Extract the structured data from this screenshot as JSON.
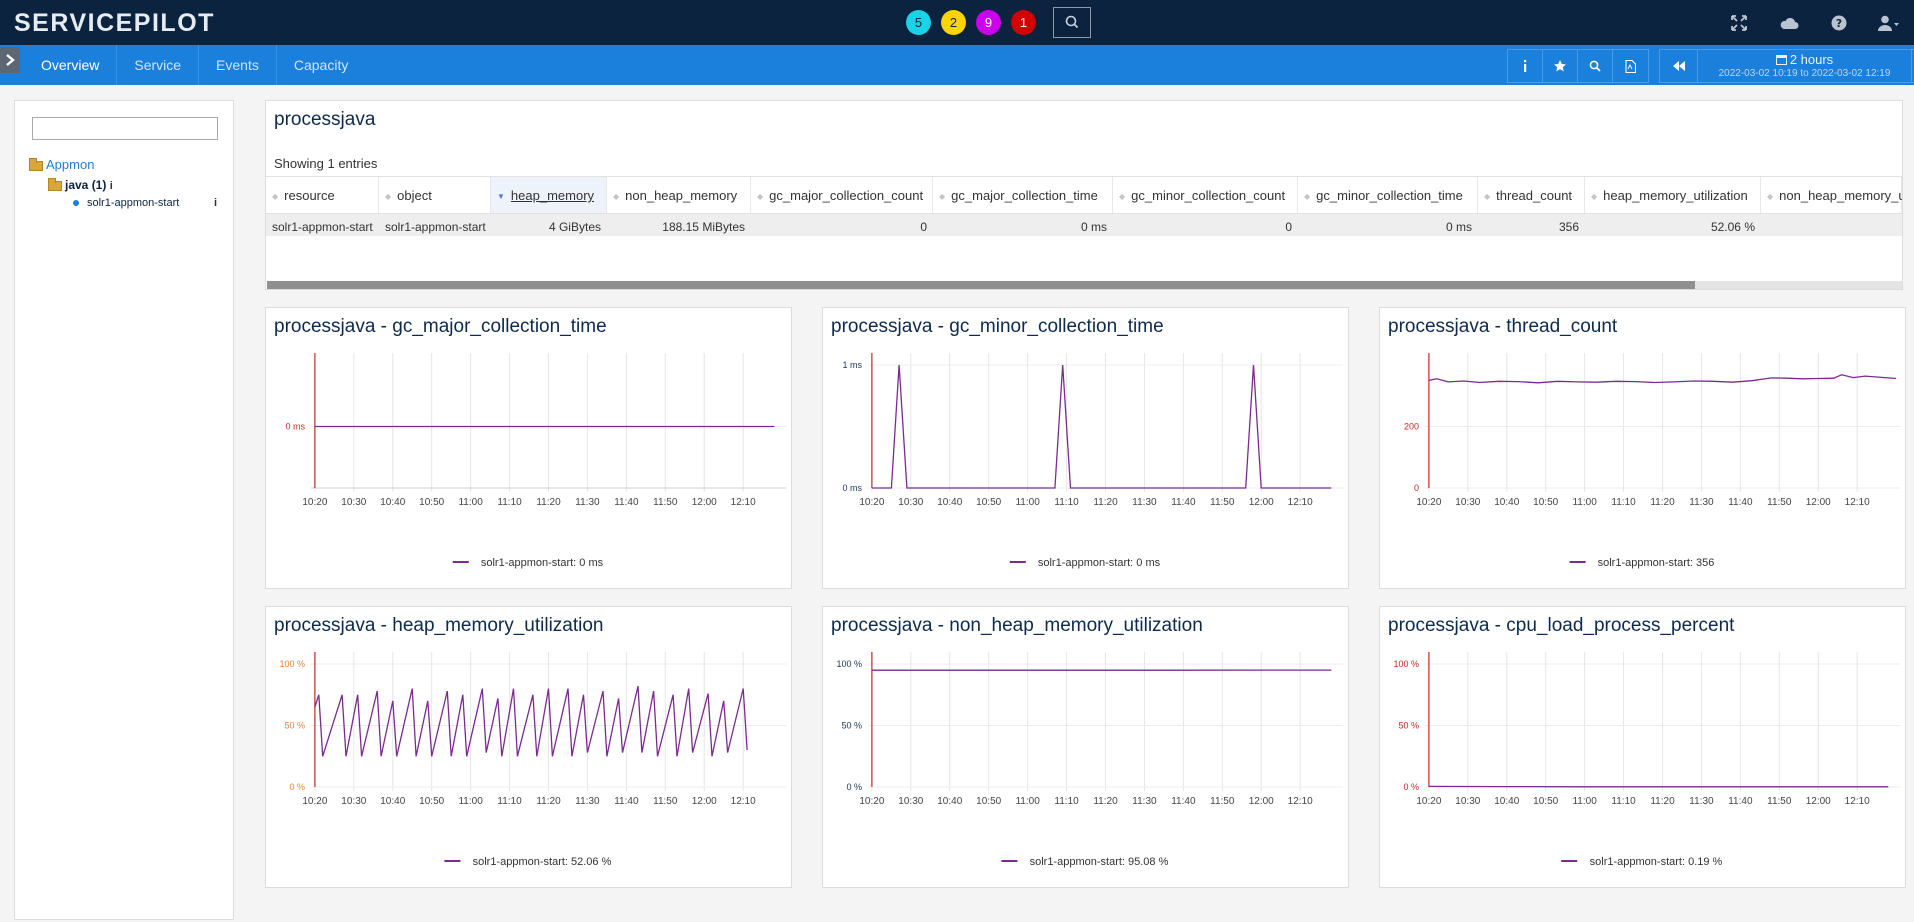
{
  "app": {
    "logo": "SERVICEPILOT",
    "badges": [
      {
        "value": "5",
        "color": "#18d4e6"
      },
      {
        "value": "2",
        "color": "#ffd400"
      },
      {
        "value": "9",
        "color": "#cc00ee"
      },
      {
        "value": "1",
        "color": "#d40000"
      }
    ],
    "top_icons": [
      "expand-icon",
      "cloud-icon",
      "help-icon",
      "user-icon"
    ]
  },
  "nav": {
    "tabs": [
      "Overview",
      "Service",
      "Events",
      "Capacity"
    ],
    "active_tab": "Overview",
    "tool_icons": [
      "info-icon",
      "star-icon",
      "search-icon",
      "pdf-icon"
    ],
    "time": {
      "label": "2 hours",
      "range": "2022-03-02 10:19 to 2022-03-02 12:19"
    }
  },
  "tree": {
    "root": "Appmon",
    "group": "java (1)",
    "leaf": "solr1-appmon-start"
  },
  "table": {
    "title": "processjava",
    "showing": "Showing 1 entries",
    "sorted_column": "heap_memory",
    "columns": [
      "resource",
      "object",
      "heap_memory",
      "non_heap_memory",
      "gc_major_collection_count",
      "gc_major_collection_time",
      "gc_minor_collection_count",
      "gc_minor_collection_time",
      "thread_count",
      "heap_memory_utilization",
      "non_heap_memory_utilization"
    ],
    "rows": [
      [
        "solr1-appmon-start",
        "solr1-appmon-start",
        "4 GiBytes",
        "188.15 MiBytes",
        "0",
        "0 ms",
        "0",
        "0 ms",
        "356",
        "52.06 %",
        ""
      ]
    ]
  },
  "chart_data": [
    {
      "type": "line",
      "title": "processjava - gc_major_collection_time",
      "ylabel": "",
      "xlabel": "",
      "x": [
        "10:20",
        "10:30",
        "10:40",
        "10:50",
        "11:00",
        "11:10",
        "11:20",
        "11:30",
        "11:40",
        "11:50",
        "12:00",
        "12:10"
      ],
      "yticks": [
        "0 ms"
      ],
      "ylim": [
        -1,
        1
      ],
      "series": [
        {
          "name": "solr1-appmon-start: 0 ms",
          "color": "#7b2a8f",
          "points": [
            [
              0,
              0
            ],
            [
              118,
              0
            ]
          ]
        }
      ]
    },
    {
      "type": "line",
      "title": "processjava - gc_minor_collection_time",
      "ylabel": "",
      "xlabel": "",
      "x": [
        "10:20",
        "10:30",
        "10:40",
        "10:50",
        "11:00",
        "11:10",
        "11:20",
        "11:30",
        "11:40",
        "11:50",
        "12:00",
        "12:10"
      ],
      "yticks": [
        "1 ms",
        "0 ms"
      ],
      "ylim": [
        0,
        1
      ],
      "series": [
        {
          "name": "solr1-appmon-start: 0 ms",
          "color": "#7b2a8f",
          "points": [
            [
              0,
              0
            ],
            [
              5,
              0
            ],
            [
              7,
              1
            ],
            [
              9,
              0
            ],
            [
              47,
              0
            ],
            [
              49,
              1
            ],
            [
              51,
              0
            ],
            [
              96,
              0
            ],
            [
              98,
              1
            ],
            [
              100,
              0
            ],
            [
              118,
              0
            ]
          ]
        }
      ]
    },
    {
      "type": "line",
      "title": "processjava - thread_count",
      "ylabel": "",
      "xlabel": "",
      "x": [
        "10:20",
        "10:30",
        "10:40",
        "10:50",
        "11:00",
        "11:10",
        "11:20",
        "11:30",
        "11:40",
        "11:50",
        "12:00",
        "12:10"
      ],
      "yticks": [
        "200",
        "0"
      ],
      "ylim": [
        0,
        400
      ],
      "series": [
        {
          "name": "solr1-appmon-start: 356",
          "color": "#7b2a8f",
          "points": [
            [
              0,
              350
            ],
            [
              2,
              355
            ],
            [
              5,
              345
            ],
            [
              9,
              348
            ],
            [
              13,
              343
            ],
            [
              18,
              347
            ],
            [
              23,
              346
            ],
            [
              28,
              342
            ],
            [
              33,
              347
            ],
            [
              38,
              345
            ],
            [
              43,
              344
            ],
            [
              48,
              347
            ],
            [
              53,
              346
            ],
            [
              58,
              343
            ],
            [
              63,
              345
            ],
            [
              68,
              348
            ],
            [
              73,
              347
            ],
            [
              78,
              344
            ],
            [
              83,
              349
            ],
            [
              88,
              358
            ],
            [
              92,
              357
            ],
            [
              96,
              355
            ],
            [
              100,
              356
            ],
            [
              104,
              357
            ],
            [
              106,
              368
            ],
            [
              109,
              359
            ],
            [
              112,
              364
            ],
            [
              115,
              361
            ],
            [
              118,
              358
            ],
            [
              120,
              356
            ]
          ]
        }
      ]
    },
    {
      "type": "line",
      "title": "processjava - heap_memory_utilization",
      "ylabel": "",
      "xlabel": "",
      "x": [
        "10:20",
        "10:30",
        "10:40",
        "10:50",
        "11:00",
        "11:10",
        "11:20",
        "11:30",
        "11:40",
        "11:50",
        "12:00",
        "12:10"
      ],
      "yticks": [
        "100 %",
        "50 %",
        "0 %"
      ],
      "ylim": [
        0,
        100
      ],
      "series": [
        {
          "name": "solr1-appmon-start: 52.06 %",
          "color": "#7b2a8f",
          "points": [
            [
              0,
              65
            ],
            [
              1,
              75
            ],
            [
              2,
              25
            ],
            [
              7,
              75
            ],
            [
              8,
              25
            ],
            [
              11,
              75
            ],
            [
              12,
              25
            ],
            [
              16,
              78
            ],
            [
              17,
              25
            ],
            [
              20,
              70
            ],
            [
              21,
              25
            ],
            [
              25,
              80
            ],
            [
              26,
              25
            ],
            [
              29,
              70
            ],
            [
              30,
              25
            ],
            [
              34,
              78
            ],
            [
              35,
              25
            ],
            [
              38,
              75
            ],
            [
              39,
              25
            ],
            [
              43,
              80
            ],
            [
              44,
              28
            ],
            [
              47,
              72
            ],
            [
              48,
              25
            ],
            [
              51,
              80
            ],
            [
              52,
              25
            ],
            [
              56,
              75
            ],
            [
              57,
              25
            ],
            [
              60,
              80
            ],
            [
              61,
              25
            ],
            [
              65,
              80
            ],
            [
              66,
              25
            ],
            [
              69,
              75
            ],
            [
              70,
              28
            ],
            [
              74,
              78
            ],
            [
              75,
              25
            ],
            [
              78,
              72
            ],
            [
              79,
              28
            ],
            [
              83,
              82
            ],
            [
              84,
              28
            ],
            [
              87,
              78
            ],
            [
              88,
              25
            ],
            [
              92,
              75
            ],
            [
              93,
              25
            ],
            [
              96,
              80
            ],
            [
              97,
              28
            ],
            [
              101,
              76
            ],
            [
              102,
              25
            ],
            [
              105,
              70
            ],
            [
              106,
              28
            ],
            [
              110,
              80
            ],
            [
              111,
              30
            ]
          ]
        }
      ]
    },
    {
      "type": "line",
      "title": "processjava - non_heap_memory_utilization",
      "ylabel": "",
      "xlabel": "",
      "x": [
        "10:20",
        "10:30",
        "10:40",
        "10:50",
        "11:00",
        "11:10",
        "11:20",
        "11:30",
        "11:40",
        "11:50",
        "12:00",
        "12:10"
      ],
      "yticks": [
        "100 %",
        "50 %",
        "0 %"
      ],
      "ylim": [
        0,
        100
      ],
      "series": [
        {
          "name": "solr1-appmon-start: 95.08 %",
          "color": "#7b2a8f",
          "points": [
            [
              0,
              95
            ],
            [
              40,
              95
            ],
            [
              80,
              95
            ],
            [
              118,
              95.08
            ]
          ]
        }
      ]
    },
    {
      "type": "line",
      "title": "processjava - cpu_load_process_percent",
      "ylabel": "",
      "xlabel": "",
      "x": [
        "10:20",
        "10:30",
        "10:40",
        "10:50",
        "11:00",
        "11:10",
        "11:20",
        "11:30",
        "11:40",
        "11:50",
        "12:00",
        "12:10"
      ],
      "yticks": [
        "100 %",
        "50 %",
        "0 %"
      ],
      "ylim": [
        0,
        100
      ],
      "series": [
        {
          "name": "solr1-appmon-start: 0.19 %",
          "color": "#7b2a8f",
          "points": [
            [
              0,
              0.5
            ],
            [
              20,
              0.3
            ],
            [
              40,
              0.2
            ],
            [
              60,
              0.2
            ],
            [
              80,
              0.2
            ],
            [
              100,
              0.2
            ],
            [
              118,
              0.19
            ]
          ]
        }
      ]
    }
  ]
}
